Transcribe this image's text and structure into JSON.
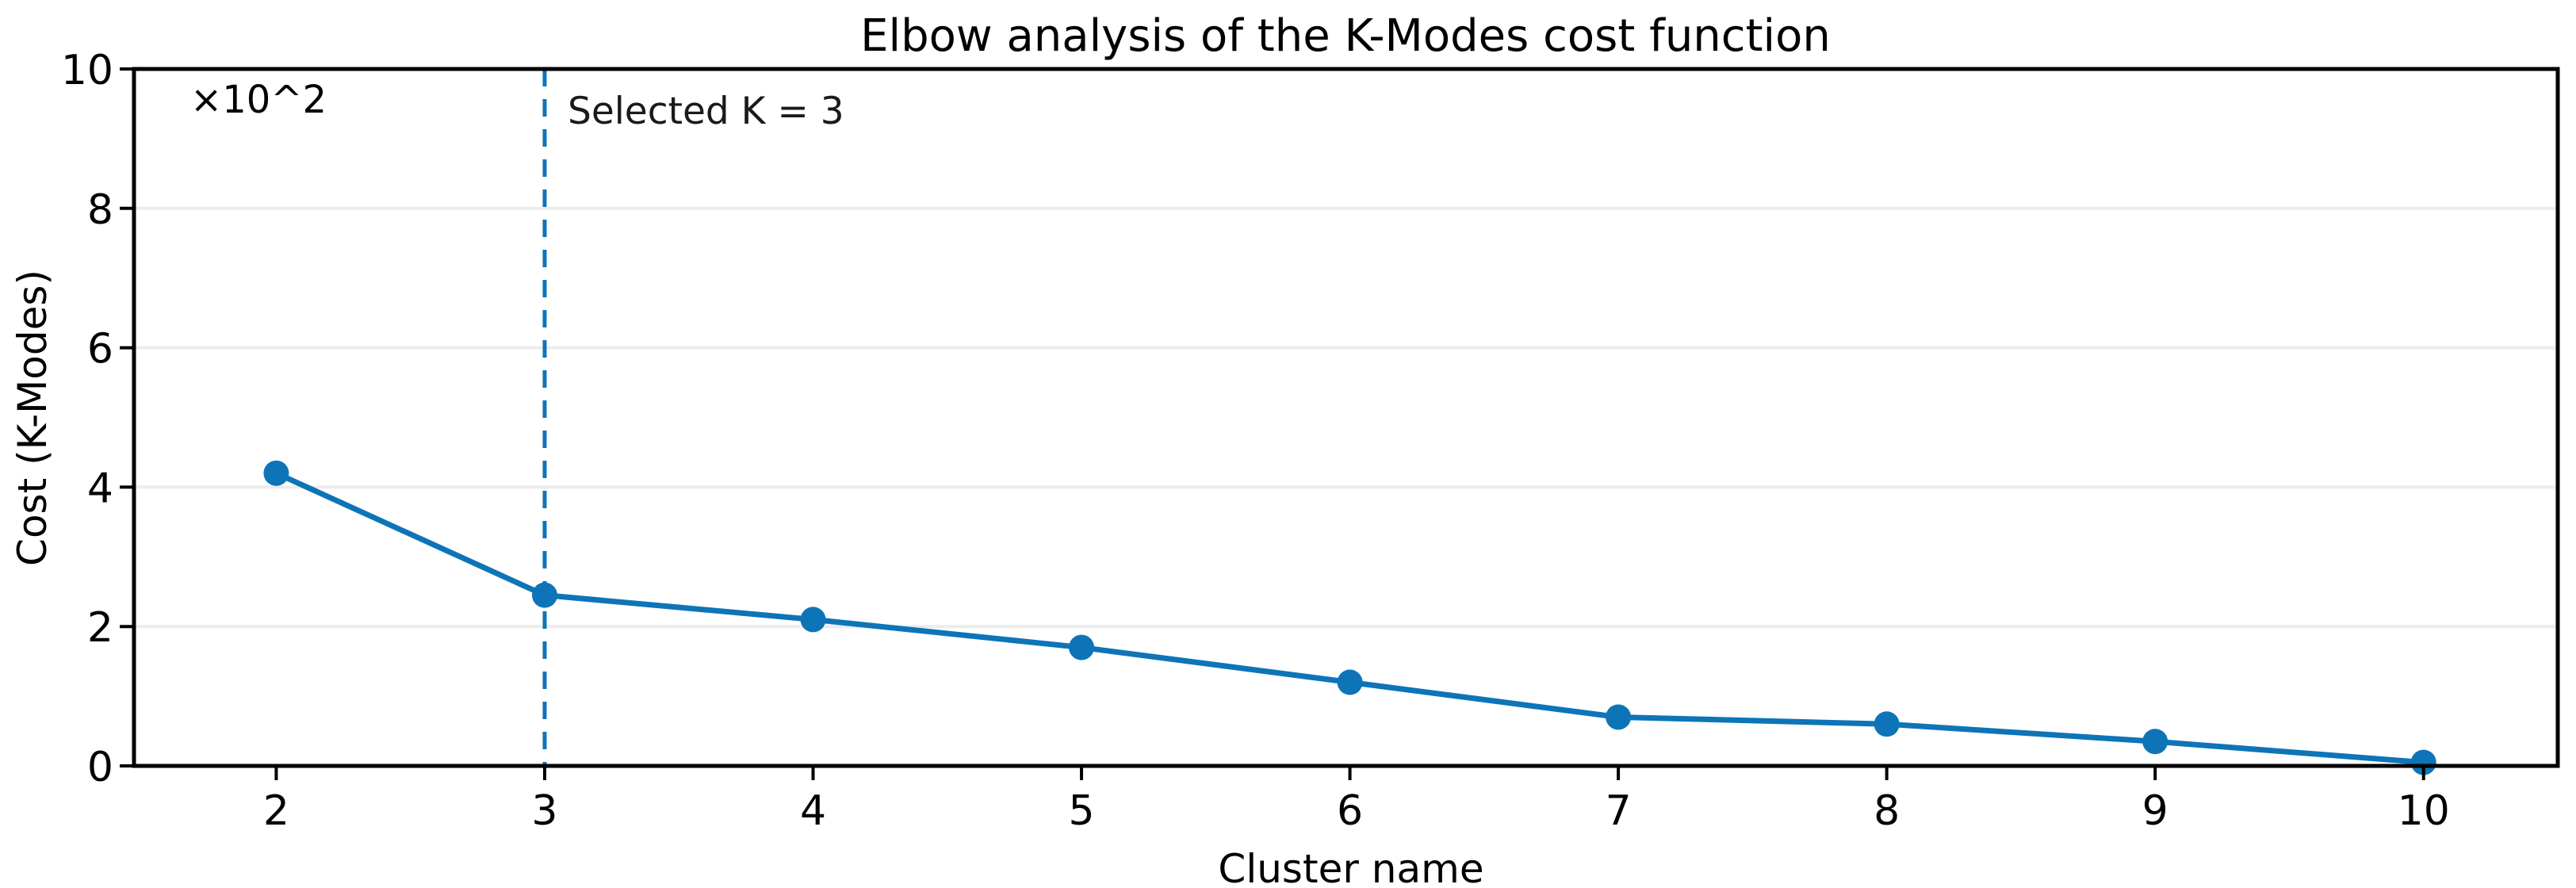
{
  "chart_data": {
    "type": "line",
    "title": "Elbow analysis of the K-Modes cost function",
    "xlabel": "Cluster name",
    "ylabel": "Cost (K-Modes)",
    "y_multiplier_label": "×10^2",
    "series_name": "K-Modes cost",
    "x": [
      2,
      3,
      4,
      5,
      6,
      7,
      8,
      9,
      10
    ],
    "values": [
      4.2,
      2.45,
      2.1,
      1.7,
      1.2,
      0.7,
      0.6,
      0.35,
      0.05
    ],
    "xticks": [
      "2",
      "3",
      "4",
      "5",
      "6",
      "7",
      "8",
      "9",
      "10"
    ],
    "yticks": [
      "0",
      "2",
      "4",
      "6",
      "8",
      "10"
    ],
    "xtick_values": [
      2,
      3,
      4,
      5,
      6,
      7,
      8,
      9,
      10
    ],
    "ytick_values": [
      0,
      2,
      4,
      6,
      8,
      10
    ],
    "xlim": [
      1.47,
      10.5
    ],
    "ylim": [
      0,
      10
    ],
    "grid": "horizontal",
    "legend": "none",
    "marker": "circle",
    "selected_k": {
      "x": 3,
      "label": "Selected K = 3",
      "line_style": "dashed"
    },
    "colors": {
      "line": "#0e74b8",
      "marker": "#0e74b8",
      "selected_line": "#0e74b8",
      "grid": "#ececec",
      "spine": "#000000",
      "text": "#000000",
      "background": "#ffffff"
    }
  }
}
